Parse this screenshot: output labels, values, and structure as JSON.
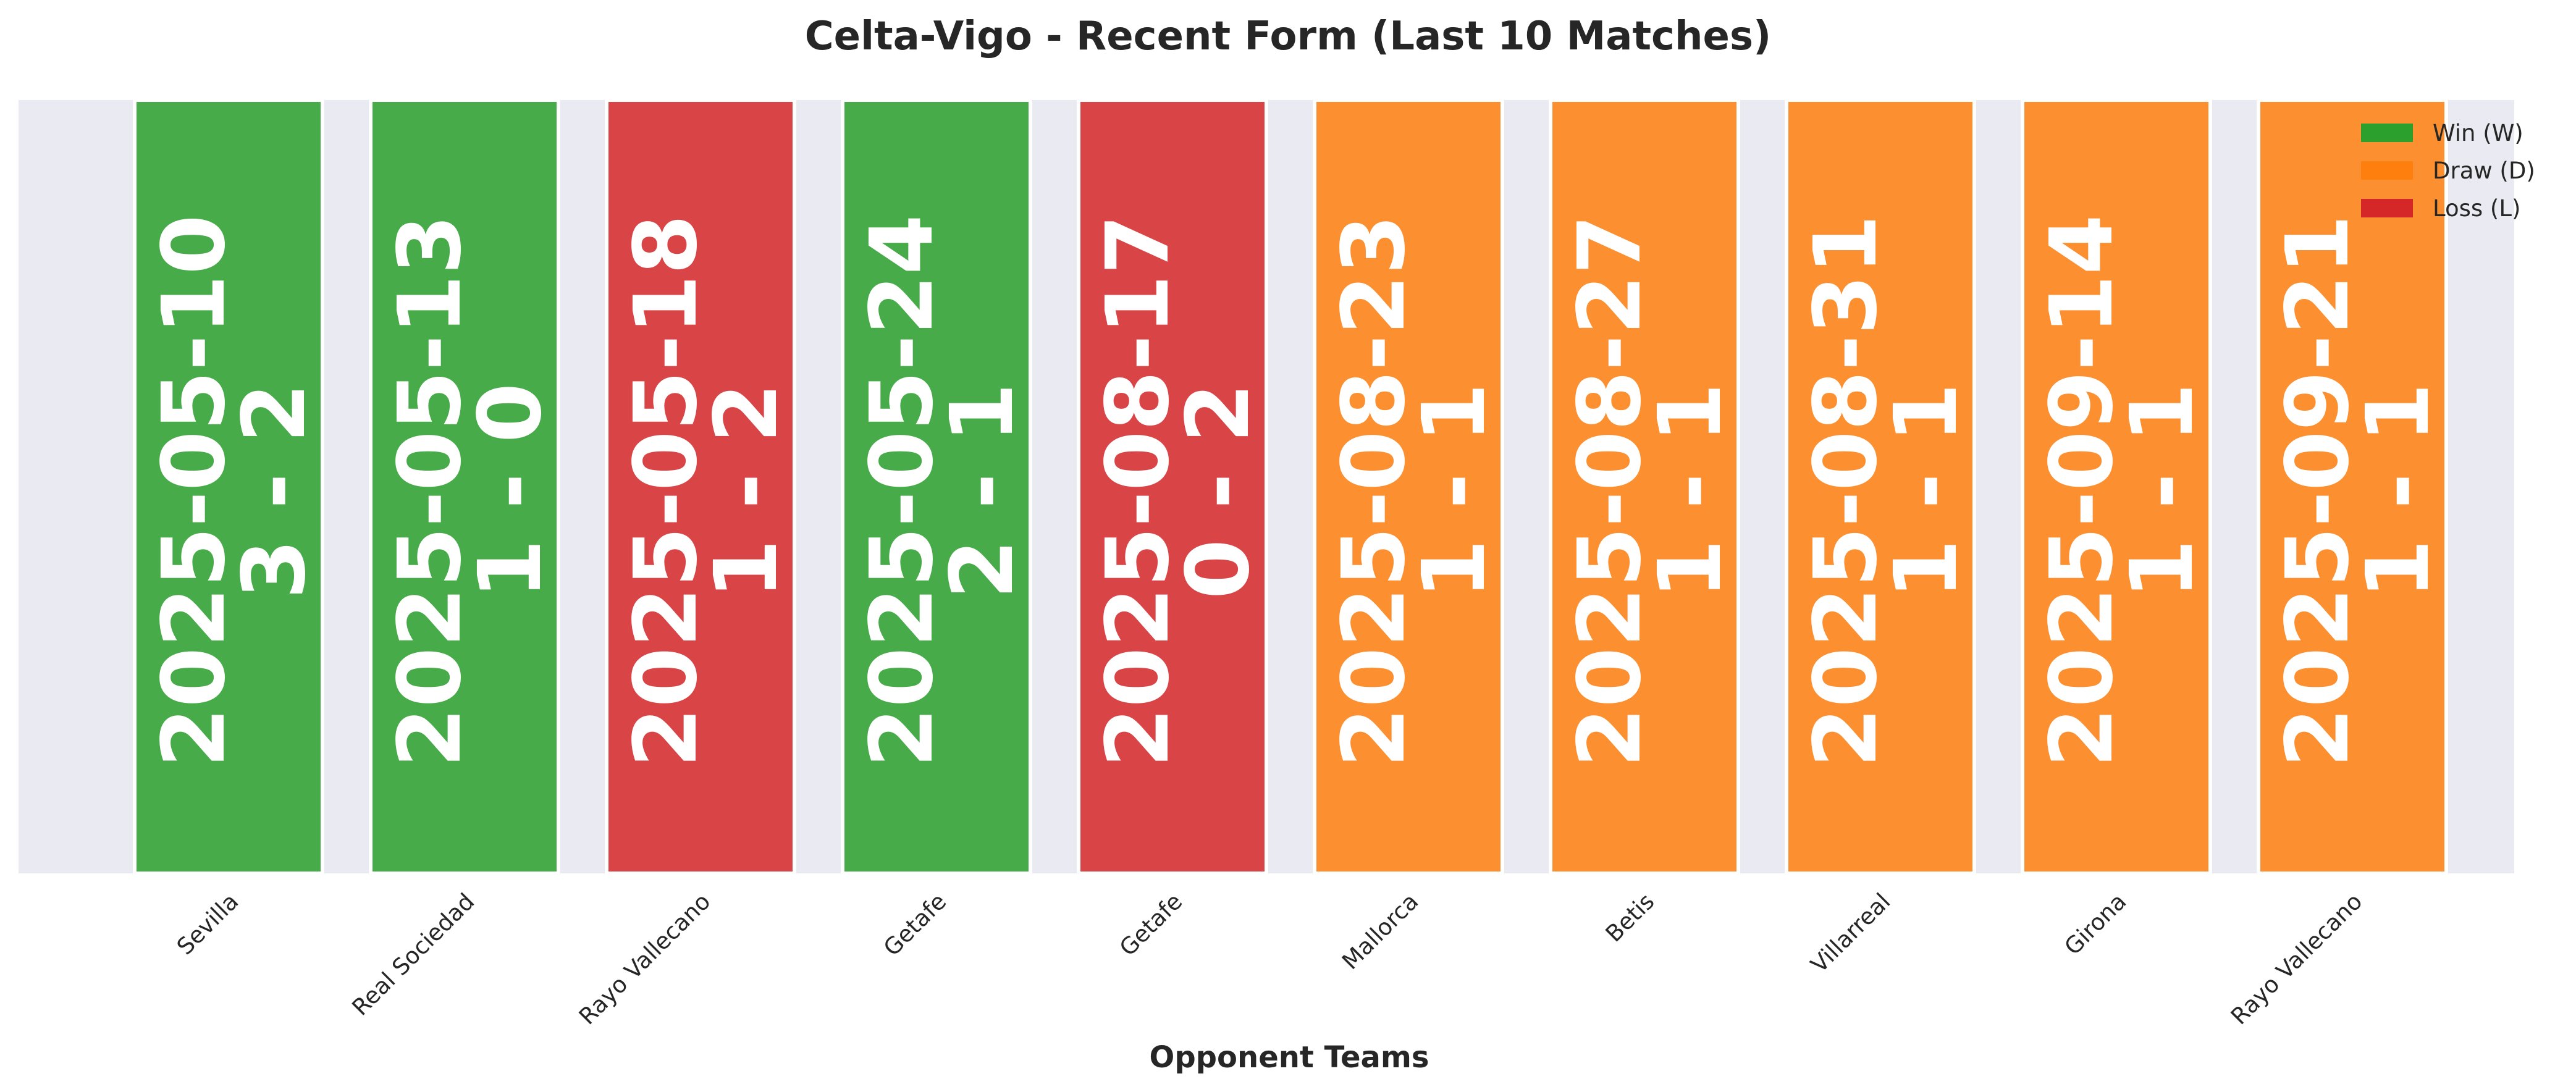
{
  "chart_data": {
    "type": "bar",
    "title": "Celta-Vigo - Recent Form (Last 10 Matches)",
    "xlabel": "Opponent Teams",
    "ylabel": "",
    "categories": [
      "Sevilla",
      "Real Sociedad",
      "Rayo Vallecano",
      "Getafe",
      "Getafe",
      "Mallorca",
      "Betis",
      "Villarreal",
      "Girona",
      "Rayo Vallecano"
    ],
    "dates": [
      "2025-05-10",
      "2025-05-13",
      "2025-05-18",
      "2025-05-24",
      "2025-08-17",
      "2025-08-23",
      "2025-08-27",
      "2025-08-31",
      "2025-09-14",
      "2025-09-21"
    ],
    "scores": [
      "3 - 2",
      "1 - 0",
      "1 - 2",
      "2 - 1",
      "0 - 2",
      "1 - 1",
      "1 - 1",
      "1 - 1",
      "1 - 1",
      "1 - 1"
    ],
    "results": [
      "W",
      "W",
      "L",
      "W",
      "L",
      "D",
      "D",
      "D",
      "D",
      "D"
    ],
    "values": [
      1,
      1,
      1,
      1,
      1,
      1,
      1,
      1,
      1,
      1
    ],
    "ylim": [
      0,
      1
    ],
    "grid": true,
    "legend": {
      "placement": "top-right",
      "entries": [
        {
          "key": "W",
          "label": "Win (W)",
          "color": "#2ca02c"
        },
        {
          "key": "D",
          "label": "Draw (D)",
          "color": "#ff7f0e"
        },
        {
          "key": "L",
          "label": "Loss (L)",
          "color": "#d62728"
        }
      ]
    },
    "colors": {
      "W": "#2ca02c",
      "D": "#ff7f0e",
      "L": "#d62728",
      "plot_background": "#eaeaf2"
    }
  }
}
